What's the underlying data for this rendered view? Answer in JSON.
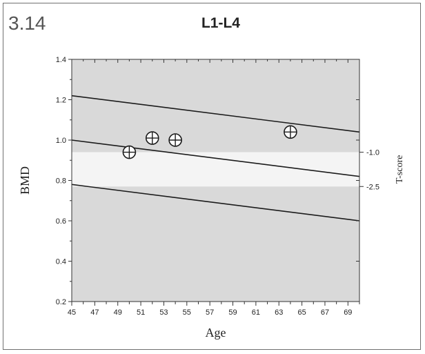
{
  "figure_number": "3.14",
  "chart_data": {
    "type": "scatter",
    "title": "L1-L4",
    "xlabel": "Age",
    "ylabel": "BMD",
    "y2label": "T-score",
    "xlim": [
      45,
      70
    ],
    "ylim": [
      0.2,
      1.4
    ],
    "x_ticks": [
      "45",
      "47",
      "49",
      "51",
      "53",
      "55",
      "57",
      "59",
      "61",
      "63",
      "65",
      "67",
      "69"
    ],
    "x_tick_values": [
      45,
      47,
      49,
      51,
      53,
      55,
      57,
      59,
      61,
      63,
      65,
      67,
      69
    ],
    "y_ticks": [
      "0.2",
      "0.4",
      "0.6",
      "0.8",
      "1.0",
      "1.2",
      "1.4"
    ],
    "y_tick_values": [
      0.2,
      0.4,
      0.6,
      0.8,
      1.0,
      1.2,
      1.4
    ],
    "tscore_ticks": [
      {
        "label": "-1.0",
        "y": 0.94
      },
      {
        "label": "-2.5",
        "y": 0.77
      }
    ],
    "bands": [
      {
        "from": 0.94,
        "to": 1.4,
        "color": "#d9d9d9"
      },
      {
        "from": 0.77,
        "to": 0.94,
        "color": "#f4f4f4"
      },
      {
        "from": 0.2,
        "to": 0.77,
        "color": "#d9d9d9"
      }
    ],
    "reference_lines": [
      {
        "x": [
          45,
          70
        ],
        "y": [
          1.22,
          1.04
        ]
      },
      {
        "x": [
          45,
          70
        ],
        "y": [
          1.0,
          0.82
        ]
      },
      {
        "x": [
          45,
          70
        ],
        "y": [
          0.78,
          0.6
        ]
      }
    ],
    "points": [
      {
        "x": 50,
        "y": 0.94
      },
      {
        "x": 52,
        "y": 1.01
      },
      {
        "x": 54,
        "y": 1.0
      },
      {
        "x": 64,
        "y": 1.04
      }
    ],
    "marker": "circle-plus",
    "colors": {
      "line": "#1a1a1a",
      "point": "#1a1a1a"
    }
  }
}
